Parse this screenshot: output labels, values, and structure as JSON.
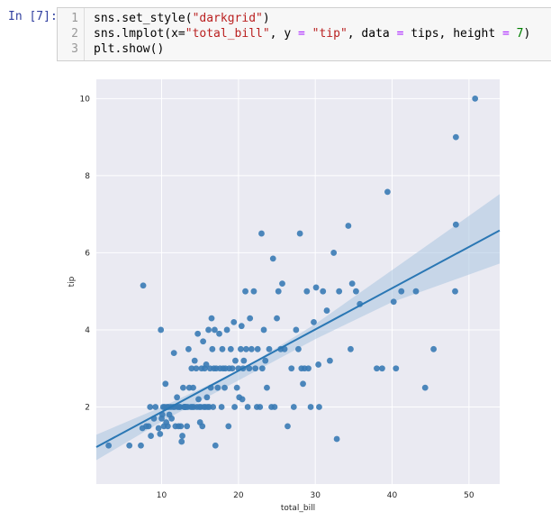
{
  "cell": {
    "prompt": "In [7]:",
    "line_numbers": [
      "1",
      "2",
      "3"
    ],
    "line1": {
      "a": "sns.set_style(",
      "s": "\"darkgrid\"",
      "b": ")"
    },
    "line2": {
      "a": "sns.lmplot(x=",
      "s1": "\"total_bill\"",
      "b": ", y ",
      "eq1": "=",
      "c": " ",
      "s2": "\"tip\"",
      "d": ", data ",
      "eq2": "=",
      "e": " tips, height ",
      "eq3": "=",
      "f": " ",
      "n": "7",
      "g": ")"
    },
    "line3": "plt.show()"
  },
  "chart_data": {
    "type": "scatter",
    "title": "",
    "xlabel": "total_bill",
    "ylabel": "tip",
    "xlim": [
      1.5,
      54
    ],
    "ylim": [
      0,
      10.5
    ],
    "xticks": [
      10,
      20,
      30,
      40,
      50
    ],
    "yticks": [
      2,
      4,
      6,
      8,
      10
    ],
    "grid": true,
    "style": "darkgrid",
    "colors": {
      "point": "#3a7bb5",
      "line": "#2a77b4",
      "band": "#a9c4e0",
      "bg": "#eaeaf2"
    },
    "regression": {
      "x": [
        1.5,
        54
      ],
      "y": [
        0.96,
        6.58
      ]
    },
    "ci_upper": [
      [
        1.5,
        1.28
      ],
      [
        10,
        2.0
      ],
      [
        20,
        2.93
      ],
      [
        30,
        4.15
      ],
      [
        40,
        5.55
      ],
      [
        54,
        7.52
      ]
    ],
    "ci_lower": [
      [
        54,
        5.72
      ],
      [
        40,
        4.72
      ],
      [
        30,
        3.76
      ],
      [
        20,
        2.69
      ],
      [
        10,
        1.62
      ],
      [
        1.5,
        0.62
      ]
    ],
    "points": [
      [
        3.1,
        1.0
      ],
      [
        5.8,
        1.0
      ],
      [
        7.3,
        1.0
      ],
      [
        7.5,
        1.45
      ],
      [
        7.6,
        5.15
      ],
      [
        8.0,
        1.5
      ],
      [
        8.3,
        1.5
      ],
      [
        8.5,
        2.0
      ],
      [
        8.6,
        1.25
      ],
      [
        9.0,
        1.7
      ],
      [
        9.2,
        2.0
      ],
      [
        9.6,
        1.45
      ],
      [
        9.8,
        1.3
      ],
      [
        9.9,
        4.0
      ],
      [
        10.0,
        1.7
      ],
      [
        10.1,
        1.8
      ],
      [
        10.2,
        2.0
      ],
      [
        10.3,
        1.5
      ],
      [
        10.4,
        2.0
      ],
      [
        10.5,
        2.6
      ],
      [
        10.6,
        1.6
      ],
      [
        10.7,
        2.0
      ],
      [
        10.8,
        1.5
      ],
      [
        10.9,
        2.0
      ],
      [
        11.0,
        1.8
      ],
      [
        11.2,
        2.0
      ],
      [
        11.3,
        1.7
      ],
      [
        11.5,
        2.0
      ],
      [
        11.6,
        3.4
      ],
      [
        11.7,
        2.0
      ],
      [
        11.8,
        1.5
      ],
      [
        12.0,
        2.25
      ],
      [
        12.1,
        2.0
      ],
      [
        12.2,
        1.5
      ],
      [
        12.3,
        2.0
      ],
      [
        12.4,
        2.0
      ],
      [
        12.5,
        1.5
      ],
      [
        12.6,
        1.1
      ],
      [
        12.7,
        1.25
      ],
      [
        12.8,
        2.5
      ],
      [
        12.9,
        2.0
      ],
      [
        13.0,
        2.0
      ],
      [
        13.0,
        2.0
      ],
      [
        13.1,
        2.0
      ],
      [
        13.2,
        2.0
      ],
      [
        13.3,
        1.5
      ],
      [
        13.4,
        2.0
      ],
      [
        13.5,
        3.5
      ],
      [
        13.6,
        2.5
      ],
      [
        13.8,
        2.0
      ],
      [
        13.9,
        3.0
      ],
      [
        14.0,
        2.0
      ],
      [
        14.1,
        2.5
      ],
      [
        14.2,
        2.0
      ],
      [
        14.3,
        3.2
      ],
      [
        14.5,
        3.0
      ],
      [
        14.6,
        2.0
      ],
      [
        14.7,
        3.9
      ],
      [
        14.8,
        2.2
      ],
      [
        14.9,
        2.0
      ],
      [
        15.0,
        1.6
      ],
      [
        15.1,
        2.0
      ],
      [
        15.2,
        3.0
      ],
      [
        15.3,
        1.5
      ],
      [
        15.4,
        3.7
      ],
      [
        15.5,
        2.0
      ],
      [
        15.6,
        3.0
      ],
      [
        15.7,
        2.0
      ],
      [
        15.8,
        3.1
      ],
      [
        15.9,
        2.25
      ],
      [
        16.0,
        2.0
      ],
      [
        16.1,
        4.0
      ],
      [
        16.2,
        2.0
      ],
      [
        16.3,
        3.0
      ],
      [
        16.4,
        2.5
      ],
      [
        16.5,
        4.3
      ],
      [
        16.6,
        3.5
      ],
      [
        16.7,
        2.0
      ],
      [
        16.8,
        3.0
      ],
      [
        16.9,
        4.0
      ],
      [
        17.0,
        1.0
      ],
      [
        17.1,
        3.0
      ],
      [
        17.3,
        2.5
      ],
      [
        17.5,
        3.9
      ],
      [
        17.6,
        3.0
      ],
      [
        17.8,
        2.0
      ],
      [
        17.9,
        3.5
      ],
      [
        18.0,
        3.0
      ],
      [
        18.2,
        2.5
      ],
      [
        18.3,
        3.0
      ],
      [
        18.5,
        4.0
      ],
      [
        18.7,
        1.5
      ],
      [
        18.8,
        3.0
      ],
      [
        19.0,
        3.5
      ],
      [
        19.2,
        3.0
      ],
      [
        19.4,
        4.2
      ],
      [
        19.5,
        2.0
      ],
      [
        19.6,
        3.2
      ],
      [
        19.8,
        2.5
      ],
      [
        20.0,
        3.0
      ],
      [
        20.1,
        2.25
      ],
      [
        20.3,
        3.5
      ],
      [
        20.4,
        4.1
      ],
      [
        20.5,
        2.2
      ],
      [
        20.6,
        3.0
      ],
      [
        20.7,
        3.2
      ],
      [
        20.9,
        5.0
      ],
      [
        21.0,
        3.5
      ],
      [
        21.2,
        2.0
      ],
      [
        21.4,
        3.0
      ],
      [
        21.5,
        4.3
      ],
      [
        21.7,
        3.5
      ],
      [
        22.0,
        5.0
      ],
      [
        22.2,
        3.0
      ],
      [
        22.4,
        2.0
      ],
      [
        22.5,
        3.5
      ],
      [
        22.8,
        2.0
      ],
      [
        23.0,
        6.5
      ],
      [
        23.1,
        3.0
      ],
      [
        23.3,
        4.0
      ],
      [
        23.5,
        3.2
      ],
      [
        23.7,
        2.5
      ],
      [
        24.0,
        3.5
      ],
      [
        24.3,
        2.0
      ],
      [
        24.5,
        5.85
      ],
      [
        24.7,
        2.0
      ],
      [
        25.0,
        4.3
      ],
      [
        25.2,
        5.0
      ],
      [
        25.5,
        3.5
      ],
      [
        25.7,
        5.2
      ],
      [
        26.0,
        3.5
      ],
      [
        26.4,
        1.5
      ],
      [
        26.9,
        3.0
      ],
      [
        27.2,
        2.0
      ],
      [
        27.5,
        4.0
      ],
      [
        27.8,
        3.5
      ],
      [
        28.0,
        6.5
      ],
      [
        28.2,
        3.0
      ],
      [
        28.4,
        2.6
      ],
      [
        28.6,
        3.0
      ],
      [
        28.9,
        5.0
      ],
      [
        29.1,
        3.0
      ],
      [
        29.4,
        2.0
      ],
      [
        29.8,
        4.2
      ],
      [
        30.1,
        5.1
      ],
      [
        30.4,
        3.1
      ],
      [
        30.5,
        2.0
      ],
      [
        31.0,
        5.0
      ],
      [
        31.5,
        4.5
      ],
      [
        31.9,
        3.2
      ],
      [
        32.4,
        6.0
      ],
      [
        32.8,
        1.17
      ],
      [
        33.1,
        5.0
      ],
      [
        34.3,
        6.7
      ],
      [
        34.6,
        3.5
      ],
      [
        34.8,
        5.2
      ],
      [
        35.3,
        5.0
      ],
      [
        35.8,
        4.67
      ],
      [
        38.0,
        3.0
      ],
      [
        38.7,
        3.0
      ],
      [
        39.4,
        7.58
      ],
      [
        40.2,
        4.73
      ],
      [
        40.5,
        3.0
      ],
      [
        41.2,
        5.0
      ],
      [
        43.1,
        5.0
      ],
      [
        44.3,
        2.5
      ],
      [
        45.4,
        3.5
      ],
      [
        48.2,
        5.0
      ],
      [
        48.3,
        9.0
      ],
      [
        48.3,
        6.73
      ],
      [
        50.8,
        10.0
      ]
    ]
  }
}
